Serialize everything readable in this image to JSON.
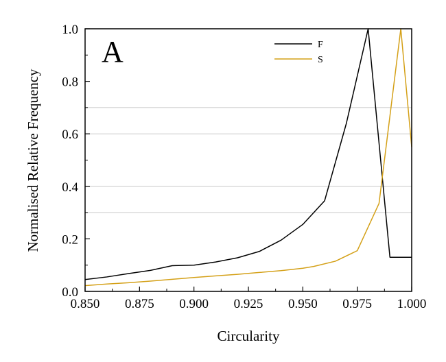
{
  "chart_data": {
    "type": "line",
    "panel_label": "A",
    "xlabel": "Circularity",
    "ylabel": "Normalised Relative Frequency",
    "xlim": [
      0.85,
      1.0
    ],
    "ylim": [
      0.0,
      1.0
    ],
    "x_ticks": [
      "0.850",
      "0.875",
      "0.900",
      "0.925",
      "0.950",
      "0.975",
      "1.000"
    ],
    "y_ticks": [
      "0.0",
      "0.2",
      "0.4",
      "0.6",
      "0.8",
      "1.0"
    ],
    "y_gridlines": [
      0.3,
      0.4,
      0.6,
      0.7
    ],
    "grid": "horizontal, partial",
    "legend_position": "top-center",
    "series": [
      {
        "name": "F",
        "color": "#000000",
        "x": [
          0.85,
          0.86,
          0.87,
          0.88,
          0.89,
          0.9,
          0.91,
          0.92,
          0.93,
          0.94,
          0.95,
          0.96,
          0.97,
          0.98,
          0.99,
          1.0
        ],
        "y": [
          0.045,
          0.055,
          0.068,
          0.08,
          0.098,
          0.1,
          0.112,
          0.128,
          0.152,
          0.195,
          0.255,
          0.345,
          0.64,
          1.0,
          0.13,
          0.13
        ]
      },
      {
        "name": "S",
        "color": "#D4A017",
        "x": [
          0.85,
          0.86,
          0.87,
          0.88,
          0.89,
          0.9,
          0.91,
          0.92,
          0.93,
          0.94,
          0.95,
          0.955,
          0.965,
          0.975,
          0.985,
          0.995,
          1.0
        ],
        "y": [
          0.022,
          0.028,
          0.033,
          0.039,
          0.046,
          0.053,
          0.059,
          0.065,
          0.072,
          0.079,
          0.088,
          0.095,
          0.115,
          0.155,
          0.335,
          1.0,
          0.55
        ]
      }
    ]
  }
}
